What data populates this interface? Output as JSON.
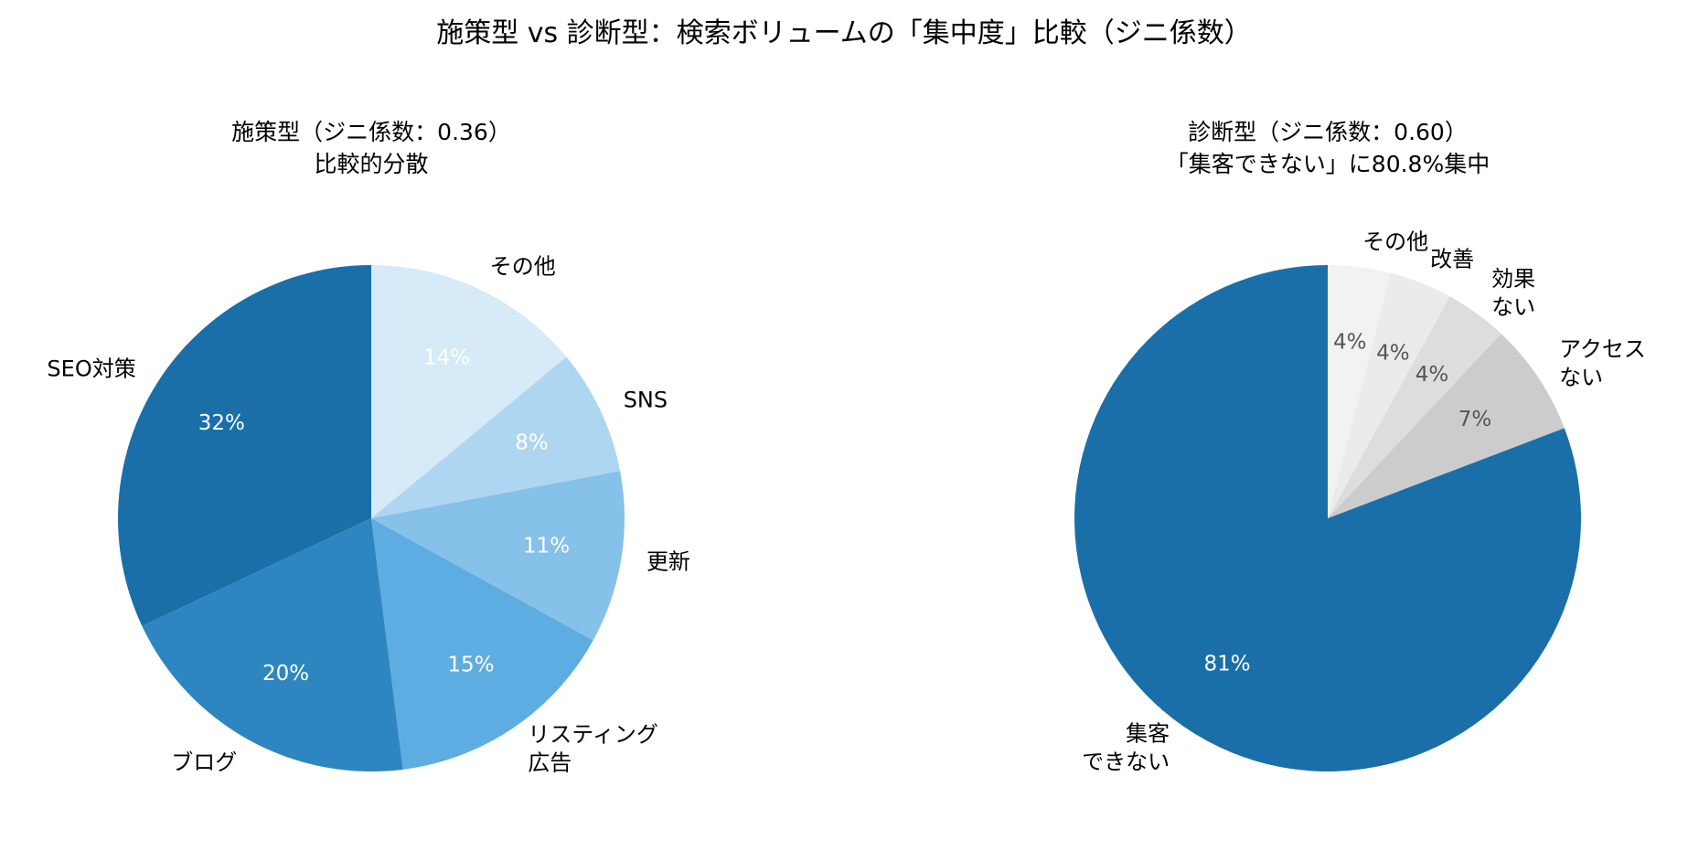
{
  "title": "施策型 vs 診断型：検索ボリュームの「集中度」比較（ジニ係数）",
  "chart_data": [
    {
      "type": "pie",
      "title_lines": [
        "施策型（ジニ係数：0.36）",
        "比較的分散"
      ],
      "start_angle": 90,
      "direction": "counterclockwise",
      "labels": [
        "SEO対策",
        "ブログ",
        "リスティング\n広告",
        "更新",
        "SNS",
        "その他"
      ],
      "values": [
        32,
        20,
        15,
        11,
        8,
        14
      ],
      "pct_labels": [
        "32%",
        "20%",
        "15%",
        "11%",
        "8%",
        "14%"
      ],
      "colors": [
        "#1b6fa8",
        "#2e86c1",
        "#5dade2",
        "#85c1e9",
        "#aed6f1",
        "#d6eaf8"
      ],
      "pct_color": "#ffffff"
    },
    {
      "type": "pie",
      "title_lines": [
        "診断型（ジニ係数：0.60）",
        "「集客できない」に80.8%集中"
      ],
      "start_angle": 90,
      "direction": "counterclockwise",
      "labels": [
        "集客\nできない",
        "アクセス\nない",
        "効果\nない",
        "改善",
        "その他"
      ],
      "values": [
        80.8,
        7.2,
        4.0,
        4.0,
        4.0
      ],
      "pct_labels": [
        "81%",
        "7%",
        "4%",
        "4%",
        "4%"
      ],
      "colors": [
        "#1b6fa8",
        "#cccccc",
        "#dddddd",
        "#ebebeb",
        "#f2f2f2"
      ],
      "pct_colors": [
        "#ffffff",
        "#555555",
        "#555555",
        "#555555",
        "#555555"
      ]
    }
  ]
}
